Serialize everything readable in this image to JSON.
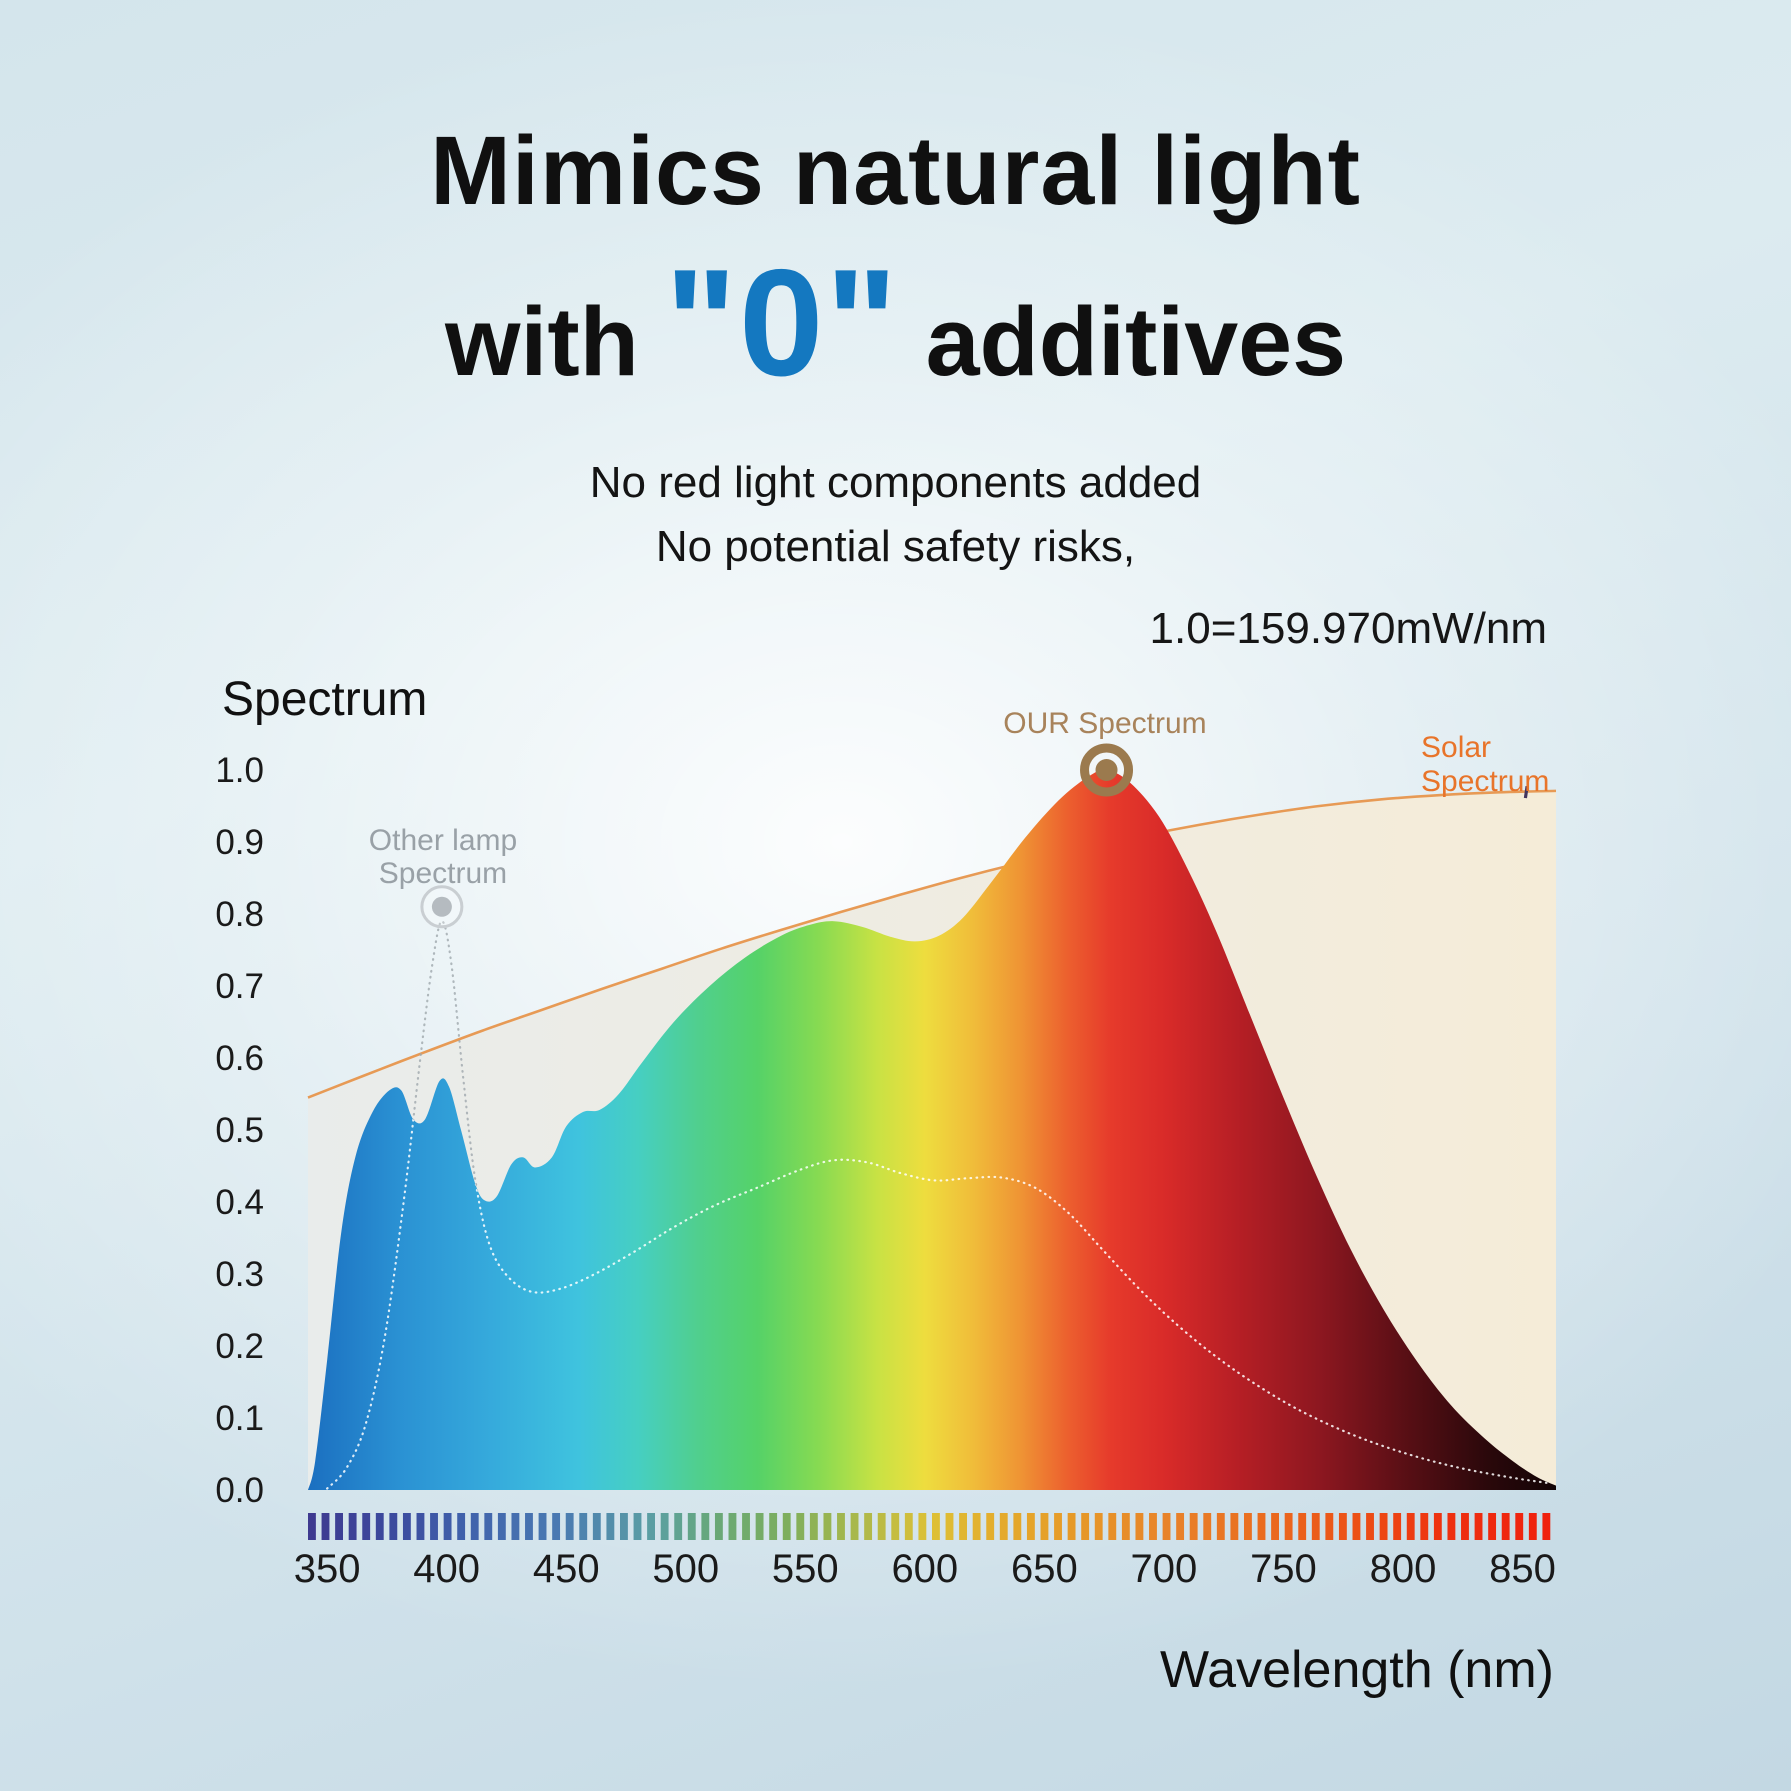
{
  "title": {
    "line1": "Mimics natural light",
    "line2_prefix": "with",
    "line2_zero": "\"0\"",
    "line2_suffix": "additives"
  },
  "subtitle": {
    "line1": "No red light components added",
    "line2": "No potential safety risks,"
  },
  "scale_note": "1.0=159.970mW/nm",
  "colors": {
    "accent_blue": "#1478c0",
    "text": "#101010",
    "tick_text": "#1a1a1a",
    "our_ring": "#9b7a4e",
    "other_ring_stroke": "#c9ced2",
    "other_ring_fill": "#b5bbc0",
    "solar_line": "#e79a55",
    "solar_fill_left": "#e9eceb",
    "solar_fill_right": "#f5ecd8",
    "solar_end_tick": "#43355e",
    "dotted_gray": "#9fa7ac",
    "dotted_white": "#ffffff"
  },
  "chart_data": {
    "type": "area",
    "title": "Spectrum",
    "ylabel": "Spectrum",
    "xlabel": "Wavelength (nm)",
    "xlim": [
      342,
      864
    ],
    "ylim": [
      0,
      1.0
    ],
    "x_ticks": [
      350,
      400,
      450,
      500,
      550,
      600,
      650,
      700,
      750,
      800,
      850
    ],
    "y_ticks": [
      "1.0",
      "0.9",
      "0.8",
      "0.7",
      "0.6",
      "0.5",
      "0.4",
      "0.3",
      "0.2",
      "0.1",
      "0.0"
    ],
    "legend_position": "inline-annotations",
    "grid": false,
    "series": [
      {
        "name": "OUR Spectrum",
        "style": "area-rainbow-gradient",
        "points": [
          [
            342,
            0
          ],
          [
            345,
            0.04
          ],
          [
            350,
            0.18
          ],
          [
            356,
            0.36
          ],
          [
            362,
            0.465
          ],
          [
            369,
            0.525
          ],
          [
            376,
            0.555
          ],
          [
            381,
            0.555
          ],
          [
            386,
            0.515
          ],
          [
            391,
            0.515
          ],
          [
            397,
            0.568
          ],
          [
            401,
            0.56
          ],
          [
            406,
            0.5
          ],
          [
            412,
            0.425
          ],
          [
            416,
            0.402
          ],
          [
            421,
            0.408
          ],
          [
            427,
            0.452
          ],
          [
            432,
            0.462
          ],
          [
            437,
            0.448
          ],
          [
            444,
            0.462
          ],
          [
            450,
            0.505
          ],
          [
            457,
            0.525
          ],
          [
            464,
            0.528
          ],
          [
            472,
            0.55
          ],
          [
            482,
            0.595
          ],
          [
            495,
            0.65
          ],
          [
            510,
            0.7
          ],
          [
            525,
            0.74
          ],
          [
            540,
            0.77
          ],
          [
            552,
            0.785
          ],
          [
            562,
            0.79
          ],
          [
            574,
            0.782
          ],
          [
            586,
            0.768
          ],
          [
            596,
            0.762
          ],
          [
            606,
            0.77
          ],
          [
            616,
            0.795
          ],
          [
            628,
            0.845
          ],
          [
            642,
            0.906
          ],
          [
            656,
            0.958
          ],
          [
            668,
            0.99
          ],
          [
            676,
            1.0
          ],
          [
            686,
            0.982
          ],
          [
            698,
            0.935
          ],
          [
            710,
            0.862
          ],
          [
            722,
            0.775
          ],
          [
            736,
            0.66
          ],
          [
            750,
            0.545
          ],
          [
            764,
            0.435
          ],
          [
            778,
            0.335
          ],
          [
            792,
            0.25
          ],
          [
            806,
            0.178
          ],
          [
            820,
            0.118
          ],
          [
            834,
            0.072
          ],
          [
            846,
            0.04
          ],
          [
            856,
            0.018
          ],
          [
            864,
            0.006
          ]
        ]
      },
      {
        "name": "Solar Spectrum",
        "style": "area-cream-orange-line",
        "points": [
          [
            342,
            0.545
          ],
          [
            365,
            0.575
          ],
          [
            390,
            0.607
          ],
          [
            415,
            0.638
          ],
          [
            440,
            0.667
          ],
          [
            465,
            0.696
          ],
          [
            490,
            0.724
          ],
          [
            515,
            0.752
          ],
          [
            540,
            0.778
          ],
          [
            565,
            0.803
          ],
          [
            590,
            0.827
          ],
          [
            615,
            0.85
          ],
          [
            640,
            0.871
          ],
          [
            665,
            0.89
          ],
          [
            690,
            0.908
          ],
          [
            715,
            0.924
          ],
          [
            740,
            0.938
          ],
          [
            765,
            0.95
          ],
          [
            790,
            0.959
          ],
          [
            815,
            0.965
          ],
          [
            840,
            0.969
          ],
          [
            864,
            0.971
          ]
        ]
      },
      {
        "name": "Other lamp Spectrum",
        "style": "dotted-line",
        "points": [
          [
            350,
            0.002
          ],
          [
            358,
            0.03
          ],
          [
            366,
            0.09
          ],
          [
            374,
            0.21
          ],
          [
            382,
            0.4
          ],
          [
            389,
            0.6
          ],
          [
            394,
            0.73
          ],
          [
            398,
            0.79
          ],
          [
            402,
            0.73
          ],
          [
            407,
            0.57
          ],
          [
            412,
            0.43
          ],
          [
            418,
            0.34
          ],
          [
            426,
            0.295
          ],
          [
            436,
            0.275
          ],
          [
            448,
            0.28
          ],
          [
            462,
            0.3
          ],
          [
            478,
            0.33
          ],
          [
            495,
            0.365
          ],
          [
            512,
            0.395
          ],
          [
            530,
            0.42
          ],
          [
            548,
            0.445
          ],
          [
            562,
            0.458
          ],
          [
            576,
            0.455
          ],
          [
            590,
            0.44
          ],
          [
            604,
            0.43
          ],
          [
            618,
            0.433
          ],
          [
            632,
            0.434
          ],
          [
            646,
            0.42
          ],
          [
            660,
            0.385
          ],
          [
            674,
            0.335
          ],
          [
            688,
            0.285
          ],
          [
            702,
            0.24
          ],
          [
            718,
            0.195
          ],
          [
            736,
            0.152
          ],
          [
            756,
            0.112
          ],
          [
            778,
            0.078
          ],
          [
            800,
            0.052
          ],
          [
            822,
            0.032
          ],
          [
            844,
            0.018
          ],
          [
            860,
            0.01
          ]
        ]
      }
    ],
    "gradient_stops": [
      {
        "wl": 342,
        "color": "#1b6fc0"
      },
      {
        "wl": 380,
        "color": "#2a91d3"
      },
      {
        "wl": 420,
        "color": "#36abdc"
      },
      {
        "wl": 455,
        "color": "#3fc3de"
      },
      {
        "wl": 480,
        "color": "#46cfc2"
      },
      {
        "wl": 505,
        "color": "#50cf8e"
      },
      {
        "wl": 530,
        "color": "#55d268"
      },
      {
        "wl": 555,
        "color": "#86da52"
      },
      {
        "wl": 580,
        "color": "#c8e244"
      },
      {
        "wl": 600,
        "color": "#eedd3e"
      },
      {
        "wl": 620,
        "color": "#f0bd3a"
      },
      {
        "wl": 640,
        "color": "#ef9434"
      },
      {
        "wl": 660,
        "color": "#ec5f2e"
      },
      {
        "wl": 678,
        "color": "#e63a2b"
      },
      {
        "wl": 700,
        "color": "#d92b29"
      },
      {
        "wl": 730,
        "color": "#b71f25"
      },
      {
        "wl": 765,
        "color": "#8d1720"
      },
      {
        "wl": 800,
        "color": "#5a0f15"
      },
      {
        "wl": 835,
        "color": "#2b080b"
      },
      {
        "wl": 864,
        "color": "#120405"
      }
    ],
    "colorbar_stops": [
      {
        "wl": 342,
        "color": "#3e3a90"
      },
      {
        "wl": 375,
        "color": "#3c4a9e"
      },
      {
        "wl": 405,
        "color": "#4061ab"
      },
      {
        "wl": 445,
        "color": "#4a7ab2"
      },
      {
        "wl": 485,
        "color": "#5b9fa3"
      },
      {
        "wl": 510,
        "color": "#68a878"
      },
      {
        "wl": 540,
        "color": "#7dae5d"
      },
      {
        "wl": 570,
        "color": "#aab84b"
      },
      {
        "wl": 600,
        "color": "#ddc136"
      },
      {
        "wl": 630,
        "color": "#e4ab2c"
      },
      {
        "wl": 660,
        "color": "#e69a28"
      },
      {
        "wl": 700,
        "color": "#e8832a"
      },
      {
        "wl": 740,
        "color": "#ea6c1f"
      },
      {
        "wl": 780,
        "color": "#ec4f16"
      },
      {
        "wl": 815,
        "color": "#ee3110"
      },
      {
        "wl": 864,
        "color": "#ef1f0e"
      }
    ],
    "annotations": {
      "our": {
        "label": "OUR Spectrum",
        "color": "#a8835b",
        "marker": {
          "wl": 676,
          "value": 1.0
        }
      },
      "other_lamp": {
        "line1": "Other lamp",
        "line2": "Spectrum",
        "color": "#99a1a7",
        "marker": {
          "wl": 398,
          "value": 0.81
        }
      },
      "solar": {
        "line1": "Solar",
        "line2": "Spectrum",
        "color": "#e8742a"
      }
    }
  }
}
